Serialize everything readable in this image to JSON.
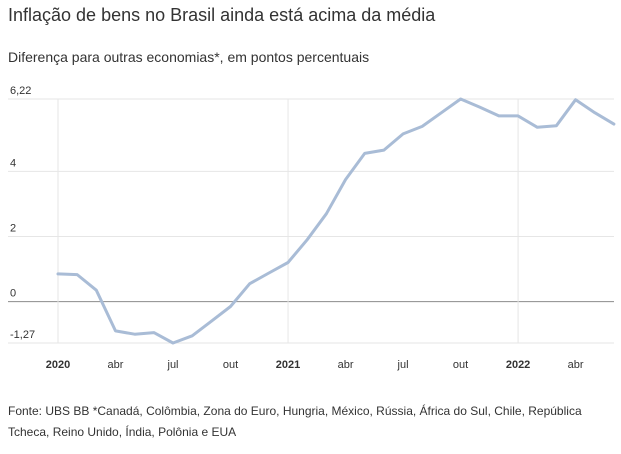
{
  "chart_data": {
    "type": "line",
    "title": "Inflação de bens no Brasil ainda está acima da média",
    "subtitle": "Diferença para outras economias*, em pontos percentuais",
    "source": "Fonte: UBS BB *Canadá, Colômbia, Zona do Euro, Hungria, México, Rússia, África do Sul, Chile, República Tcheca, Reino Unido, Índia, Polônia e EUA",
    "ylim": [
      -1.27,
      6.22
    ],
    "y_ticks": [
      {
        "value": 6.22,
        "label": "6,22"
      },
      {
        "value": 4,
        "label": "4"
      },
      {
        "value": 2,
        "label": "2"
      },
      {
        "value": 0,
        "label": "0"
      },
      {
        "value": -1.27,
        "label": "-1,27"
      }
    ],
    "x_ticks": [
      {
        "index": 0,
        "label": "2020",
        "bold": true
      },
      {
        "index": 3,
        "label": "abr",
        "bold": false
      },
      {
        "index": 6,
        "label": "jul",
        "bold": false
      },
      {
        "index": 9,
        "label": "out",
        "bold": false
      },
      {
        "index": 12,
        "label": "2021",
        "bold": true
      },
      {
        "index": 15,
        "label": "abr",
        "bold": false
      },
      {
        "index": 18,
        "label": "jul",
        "bold": false
      },
      {
        "index": 21,
        "label": "out",
        "bold": false
      },
      {
        "index": 24,
        "label": "2022",
        "bold": true
      },
      {
        "index": 27,
        "label": "abr",
        "bold": false
      }
    ],
    "series": [
      {
        "color": "#a9bcd6",
        "values": [
          0.85,
          0.83,
          0.35,
          -0.9,
          -1.0,
          -0.95,
          -1.27,
          -1.05,
          -0.6,
          -0.15,
          0.55,
          0.88,
          1.2,
          1.9,
          2.7,
          3.75,
          4.55,
          4.65,
          5.15,
          5.38,
          5.8,
          6.22,
          5.97,
          5.7,
          5.7,
          5.35,
          5.4,
          6.2,
          5.8,
          5.45
        ]
      }
    ],
    "grid": true,
    "legend": "none"
  }
}
